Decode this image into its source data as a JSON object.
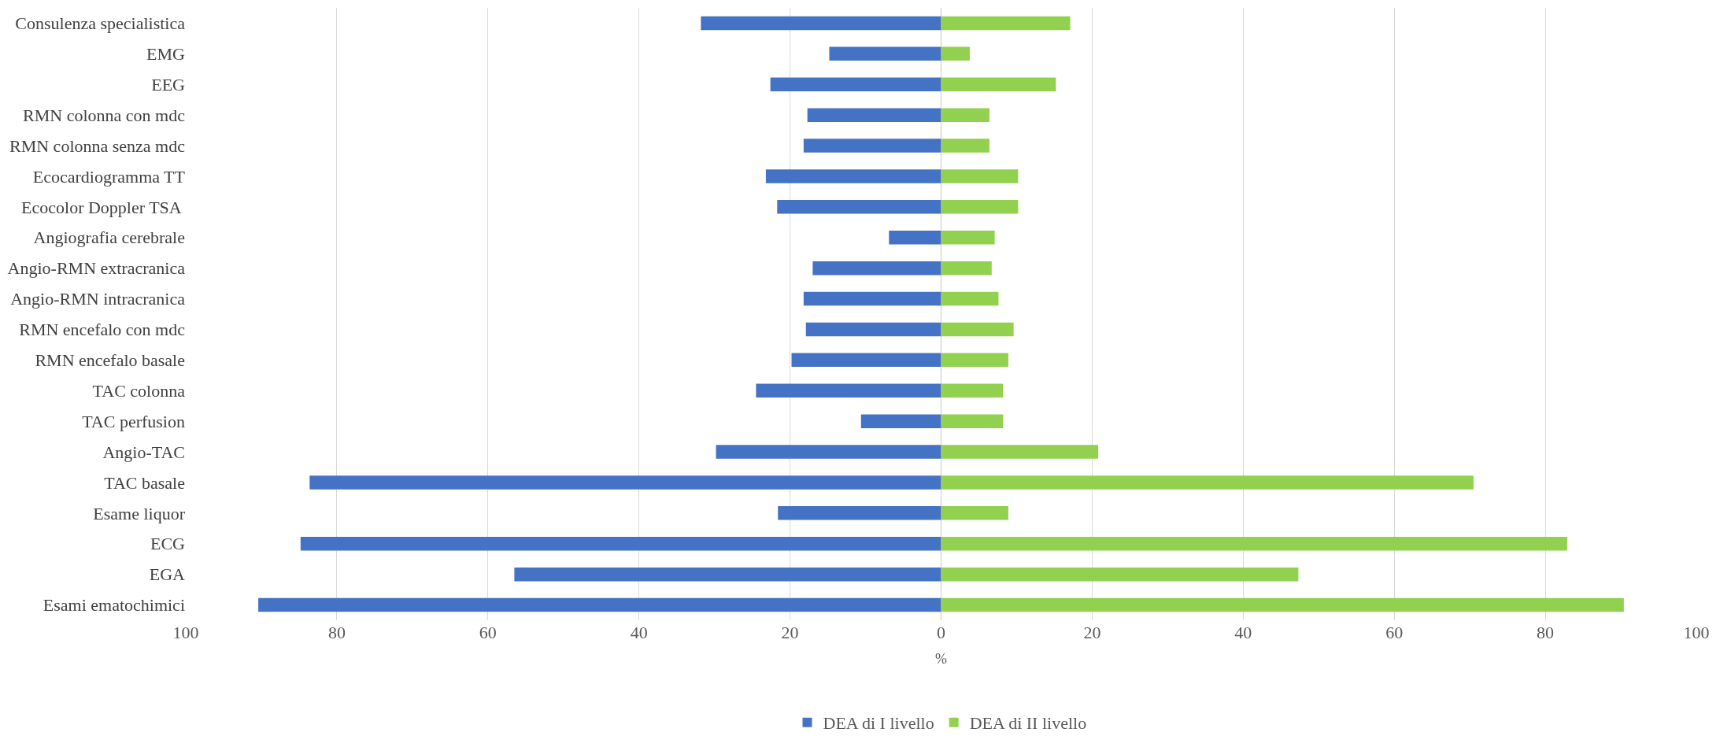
{
  "chart_data": {
    "type": "bar",
    "orientation": "horizontal",
    "xlabel": "%",
    "categories": [
      "Consulenza specialistica",
      "EMG",
      "EEG",
      "RMN colonna con mdc",
      "RMN colonna senza mdc",
      "Ecocardiogramma TT",
      "Ecocolor Doppler TSA ",
      "Angiografia cerebrale",
      "Angio-RMN extracranica",
      "Angio-RMN intracranica",
      "RMN encefalo con mdc",
      "RMN encefalo basale",
      "TAC colonna",
      "TAC perfusion",
      "Angio-TAC",
      "TAC basale",
      "Esame liquor",
      "ECG",
      "EGA",
      "Esami ematochimici"
    ],
    "series": [
      {
        "name": "DEA di I livello",
        "color": "#4472c4",
        "values": [
          -31.8,
          -14.8,
          -22.6,
          -17.7,
          -18.2,
          -23.2,
          -21.7,
          -6.9,
          -17.0,
          -18.2,
          -17.9,
          -19.8,
          -24.5,
          -10.6,
          -29.8,
          -83.6,
          -21.6,
          -84.8,
          -56.5,
          -90.4
        ]
      },
      {
        "name": "DEA di II livello",
        "color": "#92d050",
        "values": [
          17.1,
          3.8,
          15.2,
          6.4,
          6.4,
          10.2,
          10.2,
          7.1,
          6.7,
          7.6,
          9.6,
          8.9,
          8.2,
          8.2,
          20.8,
          70.5,
          8.9,
          82.9,
          47.3,
          90.4
        ]
      }
    ],
    "xlim": [
      -100,
      100
    ],
    "xticks": [
      {
        "value": -100,
        "label": "100"
      },
      {
        "value": -80,
        "label": "80"
      },
      {
        "value": -60,
        "label": "60"
      },
      {
        "value": -40,
        "label": "40"
      },
      {
        "value": -20,
        "label": "20"
      },
      0,
      20,
      40,
      60,
      80,
      100
    ],
    "grid": "x",
    "legend": "bottom",
    "stacked": true
  }
}
